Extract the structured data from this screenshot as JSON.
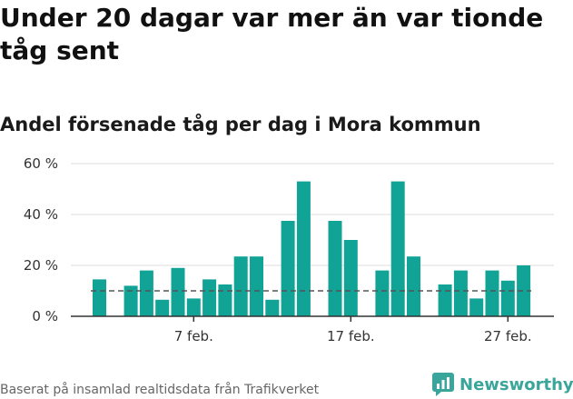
{
  "title": "Under 20 dagar var mer än var tionde tåg sent",
  "subtitle": "Andel försenade tåg per dag i Mora kommun",
  "source": "Baserat på insamlad realtidsdata från Trafikverket",
  "brand": {
    "name": "Newsworthy",
    "icon": "newsworthy-logo-icon"
  },
  "colors": {
    "bar": "#10a396",
    "grid": "#dddddd",
    "axis": "#333333",
    "reference": "#555555",
    "brand": "#3aa59a"
  },
  "chart_data": {
    "type": "bar",
    "title": "Andel försenade tåg per dag i Mora kommun",
    "xlabel": "",
    "ylabel": "",
    "days": [
      1,
      2,
      3,
      4,
      5,
      6,
      7,
      8,
      9,
      10,
      11,
      12,
      13,
      14,
      15,
      16,
      17,
      18,
      19,
      20,
      21,
      22,
      23,
      24,
      25,
      26,
      27,
      28
    ],
    "values": [
      14.5,
      0,
      12,
      18,
      6.5,
      19,
      7,
      14.5,
      12.5,
      23.5,
      23.5,
      6.5,
      37.5,
      53,
      0,
      37.5,
      30,
      0,
      18,
      53,
      23.5,
      0,
      12.5,
      18,
      7,
      18,
      14,
      20
    ],
    "x_ticks": [
      {
        "day": 7,
        "label": "7 feb."
      },
      {
        "day": 17,
        "label": "17 feb."
      },
      {
        "day": 27,
        "label": "27 feb."
      }
    ],
    "y_ticks": [
      {
        "value": 0,
        "label": "0 %"
      },
      {
        "value": 20,
        "label": "20 %"
      },
      {
        "value": 40,
        "label": "40 %"
      },
      {
        "value": 60,
        "label": "60 %"
      }
    ],
    "ylim": [
      0,
      60
    ],
    "reference_line": 10,
    "grid": true
  }
}
